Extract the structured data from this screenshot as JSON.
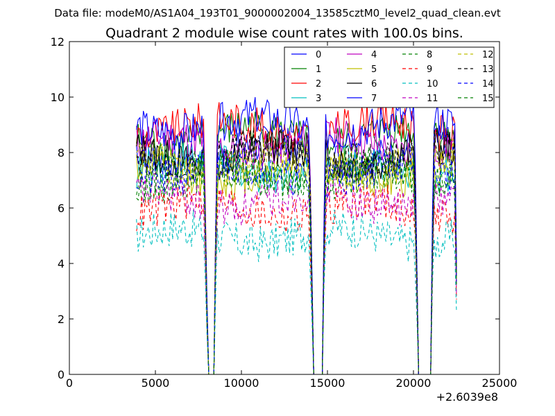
{
  "chart_data": {
    "type": "line",
    "suptitle": "Data file: modeM0/AS1A04_193T01_9000002004_13585cztM0_level2_quad_clean.evt",
    "title": "Quadrant 2 module wise count rates with 100.0s bins.",
    "xlabel": "",
    "ylabel": "",
    "x_offset_label": "+2.6039e8",
    "xlim": [
      0,
      25000
    ],
    "ylim": [
      0,
      12
    ],
    "x_ticks": [
      0,
      5000,
      10000,
      15000,
      20000,
      25000
    ],
    "x_tick_labels": [
      "0",
      "5000",
      "10000",
      "15000",
      "20000",
      "25000"
    ],
    "y_ticks": [
      0,
      2,
      4,
      6,
      8,
      10,
      12
    ],
    "y_tick_labels": [
      "0",
      "2",
      "4",
      "6",
      "8",
      "10",
      "12"
    ],
    "grid": false,
    "legend_position": "top-right",
    "x_start": 3900,
    "x_end": 22500,
    "bin": 100,
    "gaps": [
      [
        8020,
        8400
      ],
      [
        14150,
        14700
      ],
      [
        20250,
        21000
      ]
    ],
    "series": [
      {
        "name": "0",
        "color": "#0000ff",
        "dashed": false,
        "level": 8.0
      },
      {
        "name": "1",
        "color": "#008000",
        "dashed": false,
        "level": 8.6
      },
      {
        "name": "2",
        "color": "#ff0000",
        "dashed": false,
        "level": 8.9
      },
      {
        "name": "3",
        "color": "#00bfbf",
        "dashed": false,
        "level": 7.5
      },
      {
        "name": "4",
        "color": "#bf00bf",
        "dashed": false,
        "level": 8.3
      },
      {
        "name": "5",
        "color": "#bfbf00",
        "dashed": false,
        "level": 7.3
      },
      {
        "name": "6",
        "color": "#000000",
        "dashed": false,
        "level": 7.9
      },
      {
        "name": "7",
        "color": "#0000ff",
        "dashed": false,
        "level": 9.0
      },
      {
        "name": "8",
        "color": "#008000",
        "dashed": true,
        "level": 7.1
      },
      {
        "name": "9",
        "color": "#ff0000",
        "dashed": true,
        "level": 6.0
      },
      {
        "name": "10",
        "color": "#00bfbf",
        "dashed": true,
        "level": 5.0
      },
      {
        "name": "11",
        "color": "#bf00bf",
        "dashed": true,
        "level": 6.3
      },
      {
        "name": "12",
        "color": "#bfbf00",
        "dashed": true,
        "level": 7.6
      },
      {
        "name": "13",
        "color": "#000000",
        "dashed": true,
        "level": 7.9
      },
      {
        "name": "14",
        "color": "#0000ff",
        "dashed": true,
        "level": 7.3
      },
      {
        "name": "15",
        "color": "#008000",
        "dashed": true,
        "level": 7.2
      }
    ]
  }
}
